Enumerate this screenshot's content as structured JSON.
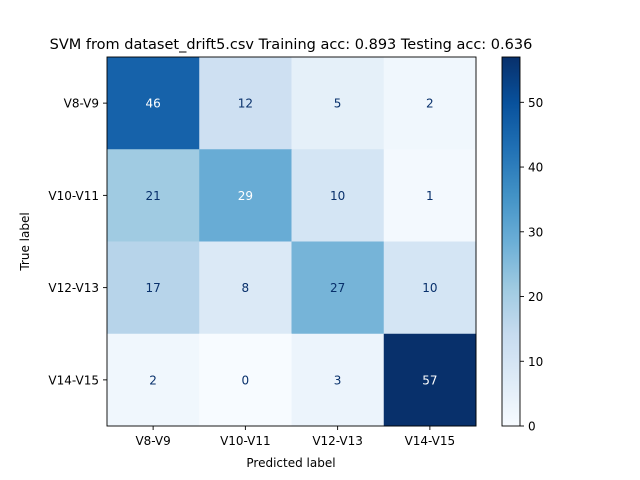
{
  "chart_data": {
    "type": "heatmap",
    "title": "SVM from dataset_drift5.csv Training acc: 0.893 Testing acc: 0.636",
    "xlabel": "Predicted label",
    "ylabel": "True label",
    "x_categories": [
      "V8-V9",
      "V10-V11",
      "V12-V13",
      "V14-V15"
    ],
    "y_categories": [
      "V8-V9",
      "V10-V11",
      "V12-V13",
      "V14-V15"
    ],
    "values": [
      [
        46,
        12,
        5,
        2
      ],
      [
        21,
        29,
        10,
        1
      ],
      [
        17,
        8,
        27,
        10
      ],
      [
        2,
        0,
        3,
        57
      ]
    ],
    "colormap": "Blues",
    "vmin": 0,
    "vmax": 57,
    "colorbar_ticks": [
      0,
      10,
      20,
      30,
      40,
      50
    ],
    "grid": false
  }
}
